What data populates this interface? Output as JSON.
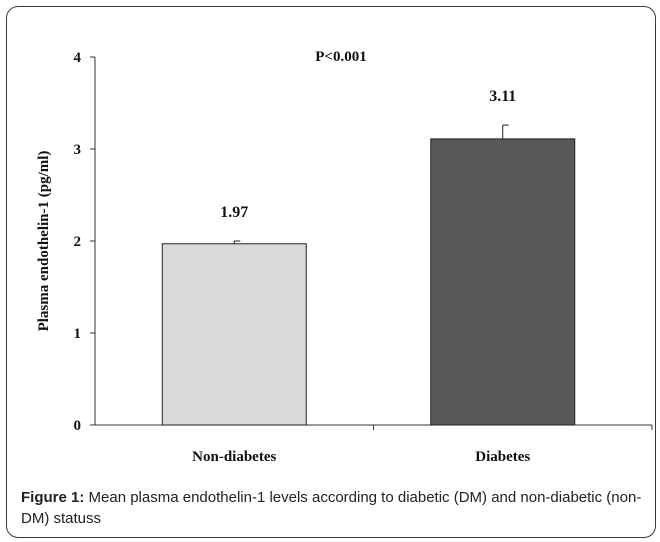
{
  "chart_data": {
    "type": "bar",
    "categories": [
      "Non-diabetes",
      "Diabetes"
    ],
    "values": [
      1.97,
      3.11
    ],
    "error_bars": [
      0.03,
      0.15
    ],
    "data_labels": [
      "1.97",
      "3.11"
    ],
    "bar_colors": [
      "#d9d9d9",
      "#595959"
    ],
    "ylabel": "Plasma endothelin-1  (pg/ml)",
    "ylim": [
      0,
      4
    ],
    "yticks": [
      "0",
      "1",
      "2",
      "3",
      "4"
    ],
    "annotation": "P<0.001",
    "grid": false,
    "legend": "none"
  },
  "caption": {
    "label": "Figure 1:",
    "text": " Mean plasma endothelin-1 levels according to diabetic (DM) and non-diabetic (non-DM) statuss"
  }
}
